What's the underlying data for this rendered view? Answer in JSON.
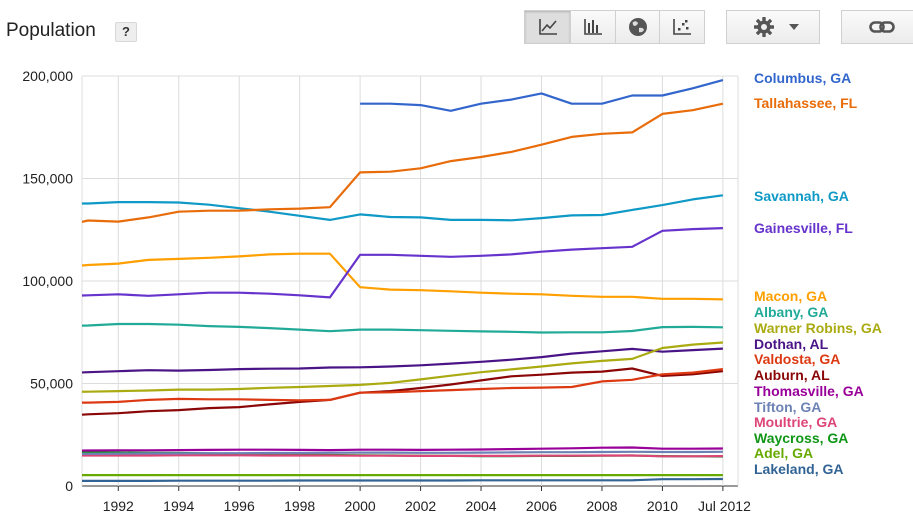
{
  "header": {
    "title": "Population",
    "help_label": "?"
  },
  "toolbar": {
    "chart_type_buttons": [
      {
        "icon": "line-chart-icon",
        "active": true
      },
      {
        "icon": "bar-chart-icon",
        "active": false
      },
      {
        "icon": "globe-map-icon",
        "active": false
      },
      {
        "icon": "scatter-chart-icon",
        "active": false
      }
    ],
    "settings_icon": "gear-icon",
    "settings_dropdown_icon": "caret-down-icon",
    "link_icon": "link-icon"
  },
  "chart_data": {
    "type": "line",
    "title": "",
    "xlabel": "",
    "ylabel": "",
    "x": [
      1990,
      1991,
      1992,
      1993,
      1994,
      1995,
      1996,
      1997,
      1998,
      1999,
      2000,
      2001,
      2002,
      2003,
      2004,
      2005,
      2006,
      2007,
      2008,
      2009,
      2010,
      2011,
      2012
    ],
    "xlim": [
      1990.8,
      2012.5
    ],
    "ylim": [
      0,
      200000
    ],
    "x_tick_labels": [
      "1992",
      "1994",
      "1996",
      "1998",
      "2000",
      "2002",
      "2004",
      "2006",
      "2008",
      "2010",
      "Jul 2012"
    ],
    "x_tick_values": [
      1992,
      1994,
      1996,
      1998,
      2000,
      2002,
      2004,
      2006,
      2008,
      2010,
      2012
    ],
    "y_tick_labels": [
      "200,000",
      "150,000",
      "100,000",
      "50,000",
      "0"
    ],
    "y_tick_values": [
      200000,
      150000,
      100000,
      50000,
      0
    ],
    "grid": true,
    "legend_position": "right",
    "series": [
      {
        "name": "Columbus, GA",
        "color": "#3366cc",
        "values": [
          null,
          null,
          null,
          null,
          null,
          null,
          null,
          null,
          null,
          null,
          186500,
          186500,
          185800,
          183000,
          186500,
          188500,
          191500,
          186500,
          186500,
          190500,
          190500,
          194000,
          198000
        ]
      },
      {
        "name": "Tallahassee, FL",
        "color": "#e86c0a",
        "values": [
          126000,
          129500,
          129000,
          131000,
          133800,
          134300,
          134300,
          135000,
          135300,
          136000,
          153000,
          153300,
          155000,
          158500,
          160500,
          163000,
          166500,
          170300,
          171800,
          172500,
          181500,
          183300,
          186500
        ]
      },
      {
        "name": "Savannah, GA",
        "color": "#0f99c6",
        "values": [
          137800,
          137800,
          138500,
          138500,
          138300,
          137200,
          135500,
          133800,
          131800,
          129800,
          132500,
          131200,
          131000,
          129800,
          129800,
          129600,
          130700,
          132000,
          132200,
          134700,
          137000,
          139800,
          141800
        ]
      },
      {
        "name": "Gainesville, FL",
        "color": "#6633cc",
        "values": [
          92500,
          93000,
          93500,
          92800,
          93500,
          94300,
          94300,
          93800,
          93000,
          92000,
          112800,
          112800,
          112300,
          111800,
          112300,
          113000,
          114300,
          115300,
          116000,
          116700,
          124500,
          125300,
          125800
        ]
      },
      {
        "name": "Macon, GA",
        "color": "#ff9f00",
        "values": [
          106500,
          107800,
          108500,
          110300,
          110800,
          111300,
          112000,
          113000,
          113300,
          113300,
          97000,
          95800,
          95500,
          95000,
          94300,
          93800,
          93500,
          92800,
          92300,
          92300,
          91300,
          91300,
          91000
        ]
      },
      {
        "name": "Albany, GA",
        "color": "#22aa99",
        "values": [
          78000,
          78300,
          79000,
          79000,
          78700,
          78000,
          77600,
          77000,
          76300,
          75500,
          76300,
          76300,
          76000,
          75700,
          75400,
          75200,
          74900,
          75000,
          75000,
          75600,
          77500,
          77600,
          77400
        ]
      },
      {
        "name": "Warner Robins, GA",
        "color": "#aaaa11",
        "values": [
          45800,
          46000,
          46300,
          46600,
          47000,
          47000,
          47300,
          47900,
          48300,
          48800,
          49300,
          50300,
          52000,
          53800,
          55500,
          56900,
          58300,
          59800,
          61000,
          62000,
          67300,
          69000,
          70000
        ]
      },
      {
        "name": "Dothan, AL",
        "color": "#4a1486",
        "values": [
          55000,
          55500,
          56000,
          56500,
          56300,
          56600,
          57000,
          57200,
          57300,
          57800,
          57900,
          58300,
          58900,
          59700,
          60600,
          61600,
          62900,
          64600,
          65700,
          66900,
          65500,
          66300,
          67000
        ]
      },
      {
        "name": "Valdosta, GA",
        "color": "#dc3912",
        "values": [
          40700,
          40700,
          41000,
          42000,
          42500,
          42300,
          42300,
          42000,
          41800,
          42000,
          45500,
          45700,
          46300,
          46800,
          47300,
          47800,
          48000,
          48300,
          51000,
          51800,
          54500,
          55300,
          57000
        ]
      },
      {
        "name": "Auburn, AL",
        "color": "#8b0707",
        "values": [
          34000,
          35000,
          35500,
          36500,
          37000,
          38000,
          38500,
          39800,
          41000,
          42000,
          45500,
          46300,
          47800,
          49500,
          51500,
          53500,
          54300,
          55300,
          55800,
          57300,
          53700,
          54500,
          56000
        ]
      },
      {
        "name": "Thomasville, GA",
        "color": "#990099",
        "values": [
          17200,
          17300,
          17400,
          17400,
          17500,
          17600,
          17700,
          17700,
          17600,
          17500,
          17700,
          17700,
          17600,
          17700,
          17800,
          18000,
          18200,
          18400,
          18700,
          18800,
          18200,
          18200,
          18300
        ]
      },
      {
        "name": "Tifton, GA",
        "color": "#6d82b4",
        "values": [
          15600,
          15700,
          15800,
          15900,
          15900,
          16000,
          16000,
          16100,
          16100,
          16200,
          16300,
          16300,
          16200,
          16200,
          16300,
          16400,
          16500,
          16500,
          16600,
          16700,
          16600,
          16600,
          16700
        ]
      },
      {
        "name": "Moultrie, GA",
        "color": "#dd4477",
        "values": [
          14800,
          14900,
          14900,
          14900,
          15000,
          15000,
          15000,
          14900,
          14900,
          14900,
          14800,
          14800,
          14700,
          14700,
          14700,
          14700,
          14800,
          14800,
          14900,
          14900,
          14500,
          14500,
          14600
        ]
      },
      {
        "name": "Waycross, GA",
        "color": "#109618",
        "values": [
          16500,
          16400,
          16300,
          16200,
          16100,
          15900,
          15700,
          15400,
          15200,
          15100,
          15000,
          14900,
          14800,
          14700,
          14600,
          14600,
          14700,
          14700,
          14800,
          14900,
          14600,
          14500,
          14400
        ]
      },
      {
        "name": "Adel, GA",
        "color": "#66aa00",
        "values": [
          5300,
          5300,
          5300,
          5300,
          5300,
          5300,
          5300,
          5300,
          5300,
          5300,
          5300,
          5300,
          5300,
          5300,
          5300,
          5300,
          5300,
          5300,
          5300,
          5300,
          5300,
          5300,
          5300
        ]
      },
      {
        "name": "Lakeland, GA",
        "color": "#316395",
        "values": [
          2500,
          2500,
          2500,
          2500,
          2600,
          2600,
          2600,
          2600,
          2700,
          2700,
          2700,
          2700,
          2700,
          2700,
          2800,
          2800,
          2800,
          2800,
          2800,
          2800,
          3300,
          3300,
          3400
        ]
      }
    ]
  }
}
